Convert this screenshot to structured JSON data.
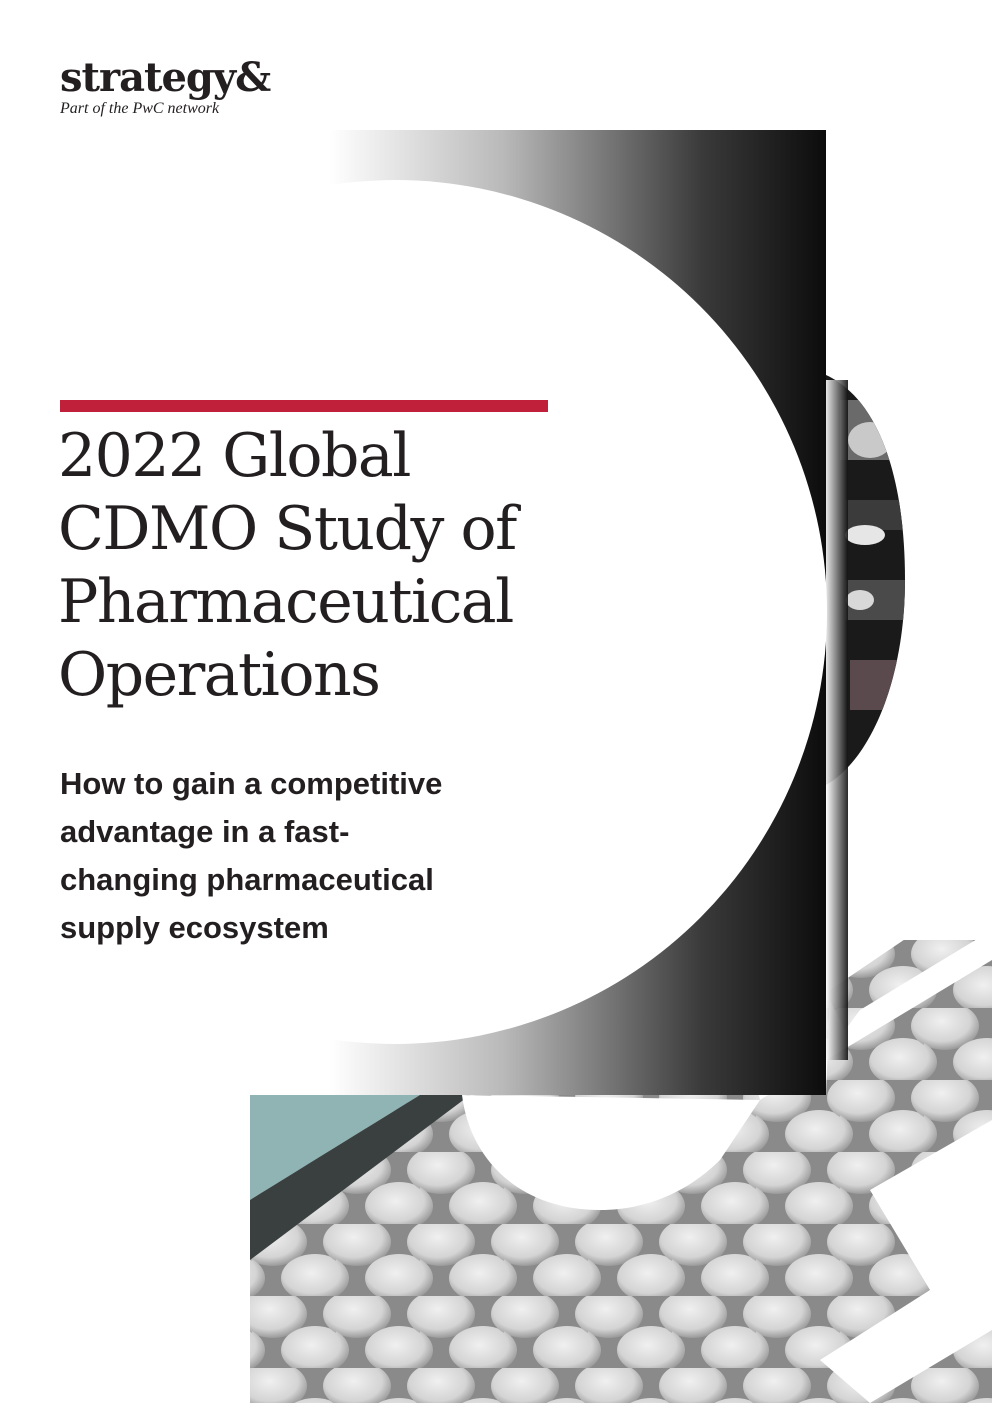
{
  "brand": {
    "name": "strategy&",
    "tagline": "Part of the PwC network"
  },
  "cover": {
    "title_lines": [
      "2022 Global",
      "CDMO Study of",
      "Pharmaceutical",
      "Operations"
    ],
    "subtitle_lines": [
      "How to gain a competitive",
      "advantage in a fast-",
      "changing pharmaceutical",
      "supply ecosystem"
    ]
  },
  "colors": {
    "accent_rule": "#c0203a",
    "text": "#231f20",
    "band_dark": "#0c0c0c",
    "photo_teal": "#8fb4b3",
    "pill_light": "#dcdcdc"
  },
  "icons": {
    "ampersand_graphic": "ampersand-photo-graphic"
  }
}
